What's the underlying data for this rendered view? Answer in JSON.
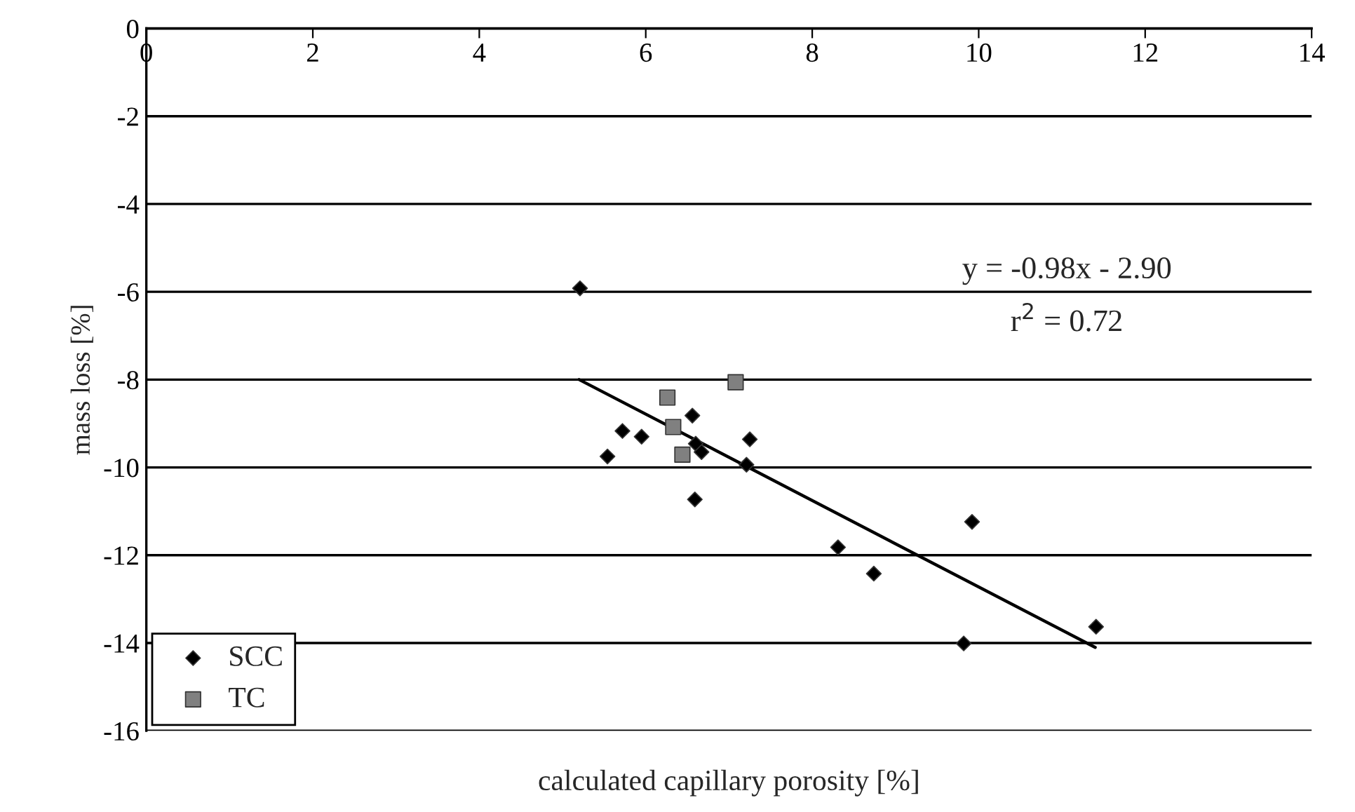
{
  "chart_data": {
    "type": "scatter",
    "xlabel": "calculated capillary porosity [%]",
    "ylabel": "mass loss [%]",
    "xlim": [
      0,
      14
    ],
    "xticks": [
      0,
      2,
      4,
      6,
      8,
      10,
      12,
      14
    ],
    "ylim": [
      -16,
      0
    ],
    "yticks": [
      -16,
      -14,
      -12,
      -10,
      -8,
      -6,
      -4,
      -2,
      0
    ],
    "grid": "y",
    "legend": "bottom left",
    "annotations": [
      "y = -0.98x - 2.90",
      "r$^{2}$ = 0.72"
    ],
    "series": [
      {
        "name": "SCC",
        "color": "#000000",
        "marker": "diamond",
        "x": [
          5.21,
          5.72,
          5.95,
          5.54,
          6.56,
          6.6,
          6.67,
          7.25,
          7.21,
          6.59,
          8.31,
          8.74,
          9.92,
          9.82,
          11.41
        ],
        "values": [
          -5.92,
          -9.17,
          -9.3,
          -9.75,
          -8.82,
          -9.46,
          -9.65,
          -9.36,
          -9.94,
          -10.73,
          -11.82,
          -12.42,
          -11.24,
          -14.01,
          -13.63
        ]
      },
      {
        "name": "TC",
        "color": "#808080",
        "marker": "square",
        "x": [
          6.26,
          7.08,
          6.33,
          6.44
        ],
        "values": [
          -8.41,
          -8.06,
          -9.08,
          -9.71
        ]
      },
      {
        "type": "line",
        "color": "#000000",
        "marker": "none",
        "x": [
          5.2,
          11.4
        ],
        "values": [
          -8.0,
          -14.1
        ]
      }
    ]
  }
}
